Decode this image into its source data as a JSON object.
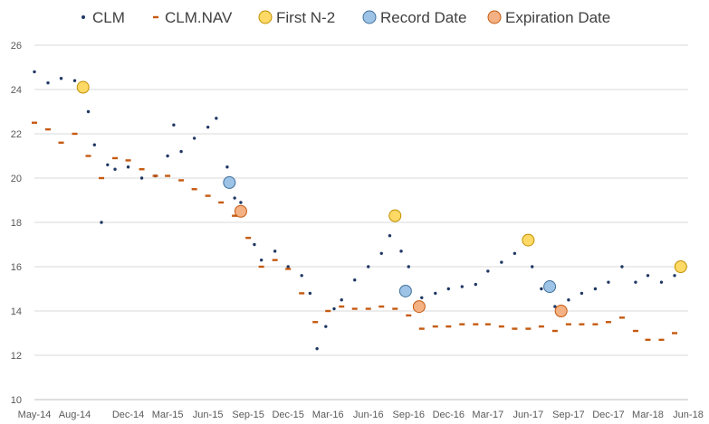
{
  "chart_data": {
    "type": "scatter",
    "title": "",
    "xlabel": "",
    "ylabel": "",
    "ylim": [
      10,
      26
    ],
    "yticks": [
      10,
      12,
      14,
      16,
      18,
      20,
      22,
      24,
      26
    ],
    "xlim": [
      "2014-05-01",
      "2018-06-01"
    ],
    "xticks": [
      {
        "date": "2014-05-01",
        "label": "May-14"
      },
      {
        "date": "2014-08-01",
        "label": "Aug-14"
      },
      {
        "date": "2014-12-01",
        "label": "Dec-14"
      },
      {
        "date": "2015-03-01",
        "label": "Mar-15"
      },
      {
        "date": "2015-06-01",
        "label": "Jun-15"
      },
      {
        "date": "2015-09-01",
        "label": "Sep-15"
      },
      {
        "date": "2015-12-01",
        "label": "Dec-15"
      },
      {
        "date": "2016-03-01",
        "label": "Mar-16"
      },
      {
        "date": "2016-06-01",
        "label": "Jun-16"
      },
      {
        "date": "2016-09-01",
        "label": "Sep-16"
      },
      {
        "date": "2016-12-01",
        "label": "Dec-16"
      },
      {
        "date": "2017-03-01",
        "label": "Mar-17"
      },
      {
        "date": "2017-06-01",
        "label": "Jun-17"
      },
      {
        "date": "2017-09-01",
        "label": "Sep-17"
      },
      {
        "date": "2017-12-01",
        "label": "Dec-17"
      },
      {
        "date": "2018-03-01",
        "label": "Mar-18"
      },
      {
        "date": "2018-06-01",
        "label": "Jun-18"
      }
    ],
    "grid": {
      "horizontal": true,
      "vertical": false
    },
    "legend_position": "top",
    "series": [
      {
        "name": "CLM",
        "marker": "dot",
        "color": "#203864",
        "points": [
          [
            "2014-05-01",
            24.8
          ],
          [
            "2014-06-01",
            24.3
          ],
          [
            "2014-07-01",
            24.5
          ],
          [
            "2014-08-01",
            24.4
          ],
          [
            "2014-09-01",
            23.0
          ],
          [
            "2014-09-15",
            21.5
          ],
          [
            "2014-10-01",
            18.0
          ],
          [
            "2014-10-15",
            20.6
          ],
          [
            "2014-11-01",
            20.4
          ],
          [
            "2014-12-01",
            20.5
          ],
          [
            "2015-01-01",
            20.0
          ],
          [
            "2015-02-01",
            20.1
          ],
          [
            "2015-03-01",
            21.0
          ],
          [
            "2015-03-15",
            22.4
          ],
          [
            "2015-04-01",
            21.2
          ],
          [
            "2015-05-01",
            21.8
          ],
          [
            "2015-06-01",
            22.3
          ],
          [
            "2015-06-20",
            22.7
          ],
          [
            "2015-07-15",
            20.5
          ],
          [
            "2015-08-01",
            19.1
          ],
          [
            "2015-08-15",
            18.9
          ],
          [
            "2015-09-15",
            17.0
          ],
          [
            "2015-10-01",
            16.3
          ],
          [
            "2015-11-01",
            16.7
          ],
          [
            "2015-12-01",
            16.0
          ],
          [
            "2016-01-01",
            15.6
          ],
          [
            "2016-01-20",
            14.8
          ],
          [
            "2016-02-05",
            12.3
          ],
          [
            "2016-02-25",
            13.3
          ],
          [
            "2016-03-15",
            14.1
          ],
          [
            "2016-04-01",
            14.5
          ],
          [
            "2016-05-01",
            15.4
          ],
          [
            "2016-06-01",
            16.0
          ],
          [
            "2016-07-01",
            16.6
          ],
          [
            "2016-07-20",
            17.4
          ],
          [
            "2016-08-15",
            16.7
          ],
          [
            "2016-09-01",
            16.0
          ],
          [
            "2016-10-01",
            14.6
          ],
          [
            "2016-11-01",
            14.8
          ],
          [
            "2016-12-01",
            15.0
          ],
          [
            "2017-01-01",
            15.1
          ],
          [
            "2017-02-01",
            15.2
          ],
          [
            "2017-03-01",
            15.8
          ],
          [
            "2017-04-01",
            16.2
          ],
          [
            "2017-05-01",
            16.6
          ],
          [
            "2017-05-25",
            17.1
          ],
          [
            "2017-06-10",
            16.0
          ],
          [
            "2017-07-01",
            15.0
          ],
          [
            "2017-08-01",
            14.2
          ],
          [
            "2017-09-01",
            14.5
          ],
          [
            "2017-10-01",
            14.8
          ],
          [
            "2017-11-01",
            15.0
          ],
          [
            "2017-12-01",
            15.3
          ],
          [
            "2018-01-01",
            16.0
          ],
          [
            "2018-02-01",
            15.3
          ],
          [
            "2018-03-01",
            15.6
          ],
          [
            "2018-04-01",
            15.3
          ],
          [
            "2018-05-01",
            15.6
          ]
        ]
      },
      {
        "name": "CLM.NAV",
        "marker": "dash",
        "color": "#c55a11",
        "points": [
          [
            "2014-05-01",
            22.5
          ],
          [
            "2014-06-01",
            22.2
          ],
          [
            "2014-07-01",
            21.6
          ],
          [
            "2014-08-01",
            22.0
          ],
          [
            "2014-09-01",
            21.0
          ],
          [
            "2014-10-01",
            20.0
          ],
          [
            "2014-11-01",
            20.9
          ],
          [
            "2014-12-01",
            20.8
          ],
          [
            "2015-01-01",
            20.4
          ],
          [
            "2015-02-01",
            20.1
          ],
          [
            "2015-03-01",
            20.1
          ],
          [
            "2015-04-01",
            19.9
          ],
          [
            "2015-05-01",
            19.5
          ],
          [
            "2015-06-01",
            19.2
          ],
          [
            "2015-07-01",
            18.9
          ],
          [
            "2015-08-01",
            18.3
          ],
          [
            "2015-09-01",
            17.3
          ],
          [
            "2015-10-01",
            16.0
          ],
          [
            "2015-11-01",
            16.3
          ],
          [
            "2015-12-01",
            15.9
          ],
          [
            "2016-01-01",
            14.8
          ],
          [
            "2016-02-01",
            13.5
          ],
          [
            "2016-03-01",
            14.0
          ],
          [
            "2016-04-01",
            14.2
          ],
          [
            "2016-05-01",
            14.1
          ],
          [
            "2016-06-01",
            14.1
          ],
          [
            "2016-07-01",
            14.2
          ],
          [
            "2016-08-01",
            14.1
          ],
          [
            "2016-09-01",
            13.8
          ],
          [
            "2016-10-01",
            13.2
          ],
          [
            "2016-11-01",
            13.3
          ],
          [
            "2016-12-01",
            13.3
          ],
          [
            "2017-01-01",
            13.4
          ],
          [
            "2017-02-01",
            13.4
          ],
          [
            "2017-03-01",
            13.4
          ],
          [
            "2017-04-01",
            13.3
          ],
          [
            "2017-05-01",
            13.2
          ],
          [
            "2017-06-01",
            13.2
          ],
          [
            "2017-07-01",
            13.3
          ],
          [
            "2017-08-01",
            13.1
          ],
          [
            "2017-09-01",
            13.4
          ],
          [
            "2017-10-01",
            13.4
          ],
          [
            "2017-11-01",
            13.4
          ],
          [
            "2017-12-01",
            13.5
          ],
          [
            "2018-01-01",
            13.7
          ],
          [
            "2018-02-01",
            13.1
          ],
          [
            "2018-03-01",
            12.7
          ],
          [
            "2018-04-01",
            12.7
          ],
          [
            "2018-05-01",
            13.0
          ]
        ]
      },
      {
        "name": "First N-2",
        "marker": "circle",
        "color": "#ffd966",
        "stroke": "#bf9000",
        "points": [
          [
            "2014-08-20",
            24.1
          ],
          [
            "2016-08-01",
            18.3
          ],
          [
            "2017-06-01",
            17.2
          ],
          [
            "2018-05-15",
            16.0
          ]
        ]
      },
      {
        "name": "Record Date",
        "marker": "circle",
        "color": "#9dc3e6",
        "stroke": "#41719c",
        "points": [
          [
            "2015-07-20",
            19.8
          ],
          [
            "2016-08-25",
            14.9
          ],
          [
            "2017-07-20",
            15.1
          ]
        ]
      },
      {
        "name": "Expiration Date",
        "marker": "circle",
        "color": "#f4b183",
        "stroke": "#c55a11",
        "points": [
          [
            "2015-08-15",
            18.5
          ],
          [
            "2016-09-25",
            14.2
          ],
          [
            "2017-08-15",
            14.0
          ]
        ]
      }
    ]
  }
}
